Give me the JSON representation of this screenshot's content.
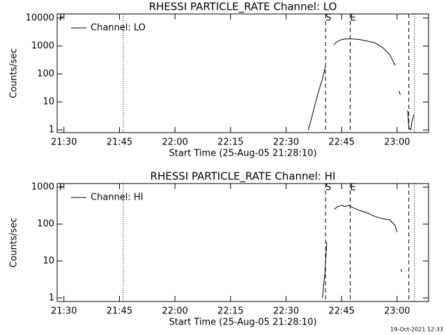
{
  "chart_data": [
    {
      "type": "line",
      "title": "RHESSI PARTICLE_RATE Channel: LO",
      "xlabel": "Start Time (25-Aug-05 21:28:10)",
      "ylabel": "Counts/sec",
      "xlim": [
        "21:28:10",
        "23:08:30"
      ],
      "xticks": [
        "21:30",
        "21:45",
        "22:00",
        "22:15",
        "22:30",
        "22:45",
        "23:00"
      ],
      "ylim": [
        0.8,
        14000
      ],
      "yticks": [
        1,
        10,
        100,
        1000,
        10000
      ],
      "log_y": true,
      "legend": "upper left",
      "markers": [
        {
          "x": "21:28:40",
          "style": "none",
          "label": "F"
        },
        {
          "x": "21:46:00",
          "style": "dotted"
        },
        {
          "x": "22:40:40",
          "style": "dashed",
          "label": "S"
        },
        {
          "x": "22:47:20",
          "style": "dashed",
          "label": "E"
        },
        {
          "x": "23:03:10",
          "style": "dashed"
        },
        {
          "x": "23:04:40",
          "style": "dotted"
        }
      ],
      "series": [
        {
          "name": "Channel: LO",
          "color": "#000000",
          "x": [
            "22:36:00",
            "22:37:00",
            "22:38:00",
            "22:39:00",
            "22:40:00",
            "22:40:40",
            "22:41:30",
            "22:42:50",
            "22:44:00",
            "22:45:00",
            "22:46:00",
            "22:48:00",
            "22:50:00",
            "22:52:00",
            "22:54:00",
            "22:56:00",
            "22:58:00",
            "22:59:30",
            "23:00:00",
            "23:00:30",
            "23:00:50",
            "23:02:00",
            "23:02:50",
            "23:03:10",
            "23:03:40",
            "23:04:00",
            "23:04:30"
          ],
          "values": [
            1,
            3,
            10,
            30,
            80,
            200,
            null,
            1100,
            1500,
            1700,
            1800,
            1800,
            1700,
            1500,
            1300,
            900,
            500,
            200,
            null,
            25,
            18,
            null,
            5,
            1.2,
            1,
            2,
            3.5
          ]
        }
      ]
    },
    {
      "type": "line",
      "title": "RHESSI PARTICLE_RATE Channel: HI",
      "xlabel": "Start Time (25-Aug-05 21:28:10)",
      "ylabel": "Counts/sec",
      "xlim": [
        "21:28:10",
        "23:08:30"
      ],
      "xticks": [
        "21:30",
        "21:45",
        "22:00",
        "22:15",
        "22:30",
        "22:45",
        "23:00"
      ],
      "ylim": [
        0.8,
        1250
      ],
      "yticks": [
        1,
        10,
        100,
        1000
      ],
      "log_y": true,
      "legend": "upper left",
      "markers": [
        {
          "x": "21:28:40",
          "style": "none",
          "label": "F"
        },
        {
          "x": "21:46:00",
          "style": "dotted"
        },
        {
          "x": "22:40:40",
          "style": "dashed",
          "label": "S"
        },
        {
          "x": "22:47:20",
          "style": "dashed",
          "label": "E"
        },
        {
          "x": "23:03:10",
          "style": "dashed"
        },
        {
          "x": "23:04:40",
          "style": "dotted"
        }
      ],
      "series": [
        {
          "name": "Channel: HI",
          "color": "#000000",
          "x": [
            "22:39:50",
            "22:40:30",
            "22:41:00",
            "22:42:00",
            "22:43:00",
            "22:44:00",
            "22:45:00",
            "22:46:00",
            "22:47:00",
            "22:48:00",
            "22:50:00",
            "22:52:00",
            "22:54:00",
            "22:56:00",
            "22:58:00",
            "22:59:30",
            "23:00:00",
            "23:00:30",
            "23:01:00",
            "23:01:15"
          ],
          "values": [
            1,
            5,
            32,
            null,
            250,
            300,
            320,
            300,
            320,
            280,
            230,
            200,
            160,
            140,
            130,
            90,
            60,
            null,
            6,
            5
          ]
        }
      ]
    }
  ],
  "footer": "19-Oct-2021 12:33"
}
